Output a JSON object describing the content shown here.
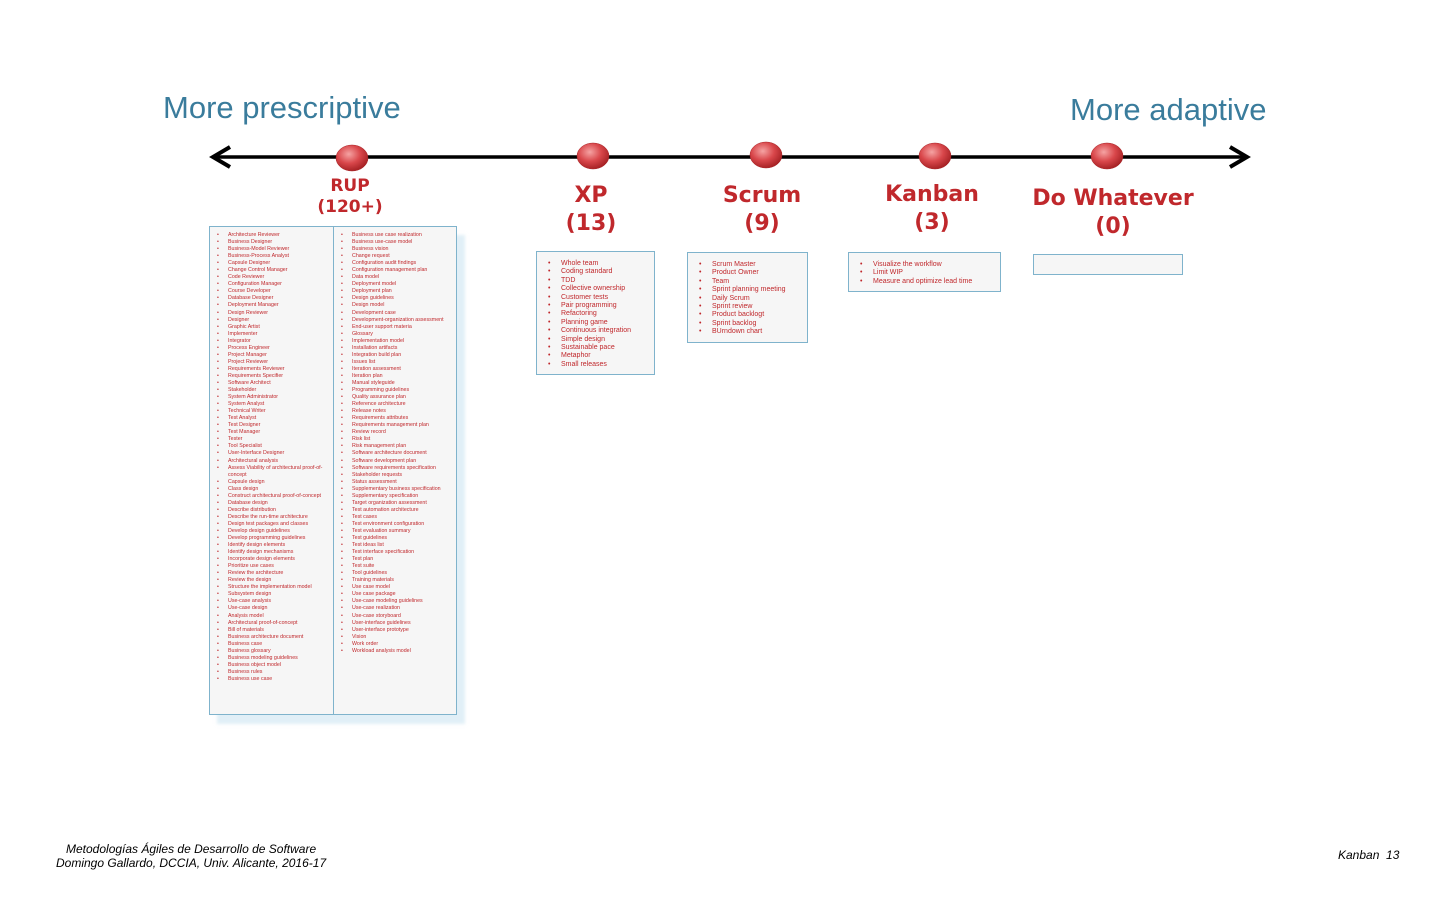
{
  "headings": {
    "left": "More prescriptive",
    "right": "More adaptive"
  },
  "methods": [
    {
      "name": "RUP",
      "count": "(120+)"
    },
    {
      "name": "XP",
      "count": "(13)"
    },
    {
      "name": "Scrum",
      "count": "(9)"
    },
    {
      "name": "Kanban",
      "count": "(3)"
    },
    {
      "name": "Do Whatever",
      "count": "(0)"
    }
  ],
  "rup_col1": [
    "Architecture Reviewer",
    "Business Designer",
    "Business-Model Reviewer",
    "Business-Process Analyst",
    "Capsule Designer",
    "Change Control Manager",
    "Code Reviewer",
    "Configuration Manager",
    "Course Developer",
    "Database Designer",
    "Deployment Manager",
    "Design Reviewer",
    "Designer",
    "Graphic Artist",
    "Implementer",
    "Integrator",
    "Process Engineer",
    "Project Manager",
    "Project Reviewer",
    "Requirements Reviewer",
    "Requirements Specifier",
    "Software Architect",
    "Stakeholder",
    "System Administrator",
    "System Analyst",
    "Technical Writer",
    "Test Analyst",
    "Test Designer",
    "Test Manager",
    "Tester",
    "Tool Specialist",
    "User-Interface Designer",
    "Architectural analysis",
    "Assess Viability of architectural proof-of-concept",
    "Capsule design",
    "Class design",
    "Construct architectural proof-of-concept",
    "Database design",
    "Describe distribution",
    "Describe the run-time architecture",
    "Design test packages and classes",
    "Develop design guidelines",
    "Develop programming guidelines",
    "Identify design elements",
    "Identify design mechanisms",
    "Incorporate design elements",
    "Prioritize use cases",
    "Review the architecture",
    "Review the design",
    "Structure the implementation model",
    "Subsystem design",
    "Use-case analysis",
    "Use-case design",
    "Analysis model",
    "Architectural proof-of-concept",
    "Bill of materials",
    "Business architecture document",
    "Business case",
    "Business glossary",
    "Business modeling guidelines",
    "Business object model",
    "Business rules",
    "Business use case"
  ],
  "rup_col2": [
    "Business use case realization",
    "Business use-case model",
    "Business vision",
    "Change request",
    "Configuration audit findings",
    "Configuration management plan",
    "Data model",
    "Deployment model",
    "Deployment plan",
    "Design guidelines",
    "Design model",
    "Development case",
    "Development-organization assessment",
    "End-user support materia",
    "Glossary",
    "Implementation model",
    "Installation artifacts",
    "Integration build plan",
    "Issues list",
    "Iteration assessment",
    "Iteration plan",
    "Manual styleguide",
    "Programming guidelines",
    "Quality assurance plan",
    "Reference architecture",
    "Release notes",
    "Requirements attributes",
    "Requirements management plan",
    "Review record",
    "Risk list",
    "Risk management plan",
    "Software architecture document",
    "Software development plan",
    "Software requirements specification",
    "Stakeholder requests",
    "Status assessment",
    "Supplementary business specification",
    "Supplementary specification",
    "Target organization assessment",
    "Test automation architecture",
    "Test cases",
    "Test environment configuration",
    "Test evaluation summary",
    "Test guidelines",
    "Test ideas list",
    "Test interface specification",
    "Test plan",
    "Test suite",
    "Tool guidelines",
    "Training materials",
    "Use case model",
    "Use case package",
    "Use-case modeling guidelines",
    "Use-case realization",
    "Use-case storyboard",
    "User-interface guidelines",
    "User-interface prototype",
    "Vision",
    "Work order",
    "Workload analysis model"
  ],
  "xp_items": [
    "Whole team",
    "Coding standard",
    "TDD",
    "Collective ownership",
    "Customer tests",
    "Pair programming",
    "Refactoring",
    "Planning game",
    "Continuous integration",
    "Simple design",
    "Sustainable pace",
    "Metaphor",
    "Small releases"
  ],
  "scrum_items": [
    "Scrum Master",
    "Product Owner",
    "Team",
    "Sprint planning meeting",
    "Daily Scrum",
    "Sprint review",
    "Product backlogt",
    "Sprint backlog",
    "BUrndown chart"
  ],
  "kanban_items": [
    "Visualize the workflow",
    "Limit WIP",
    "Measure and optimize lead time"
  ],
  "footer": {
    "left_line1": "Metodologías Ágiles de Desarrollo de Software",
    "left_line2": "Domingo Gallardo, DCCIA, Univ. Alicante, 2016-17",
    "right_topic": "Kanban",
    "right_page": "13"
  },
  "colors": {
    "heading": "#3a7c9c",
    "method": "#c0282c",
    "dot": "#d9474b",
    "box_border": "#7fb3cc"
  }
}
